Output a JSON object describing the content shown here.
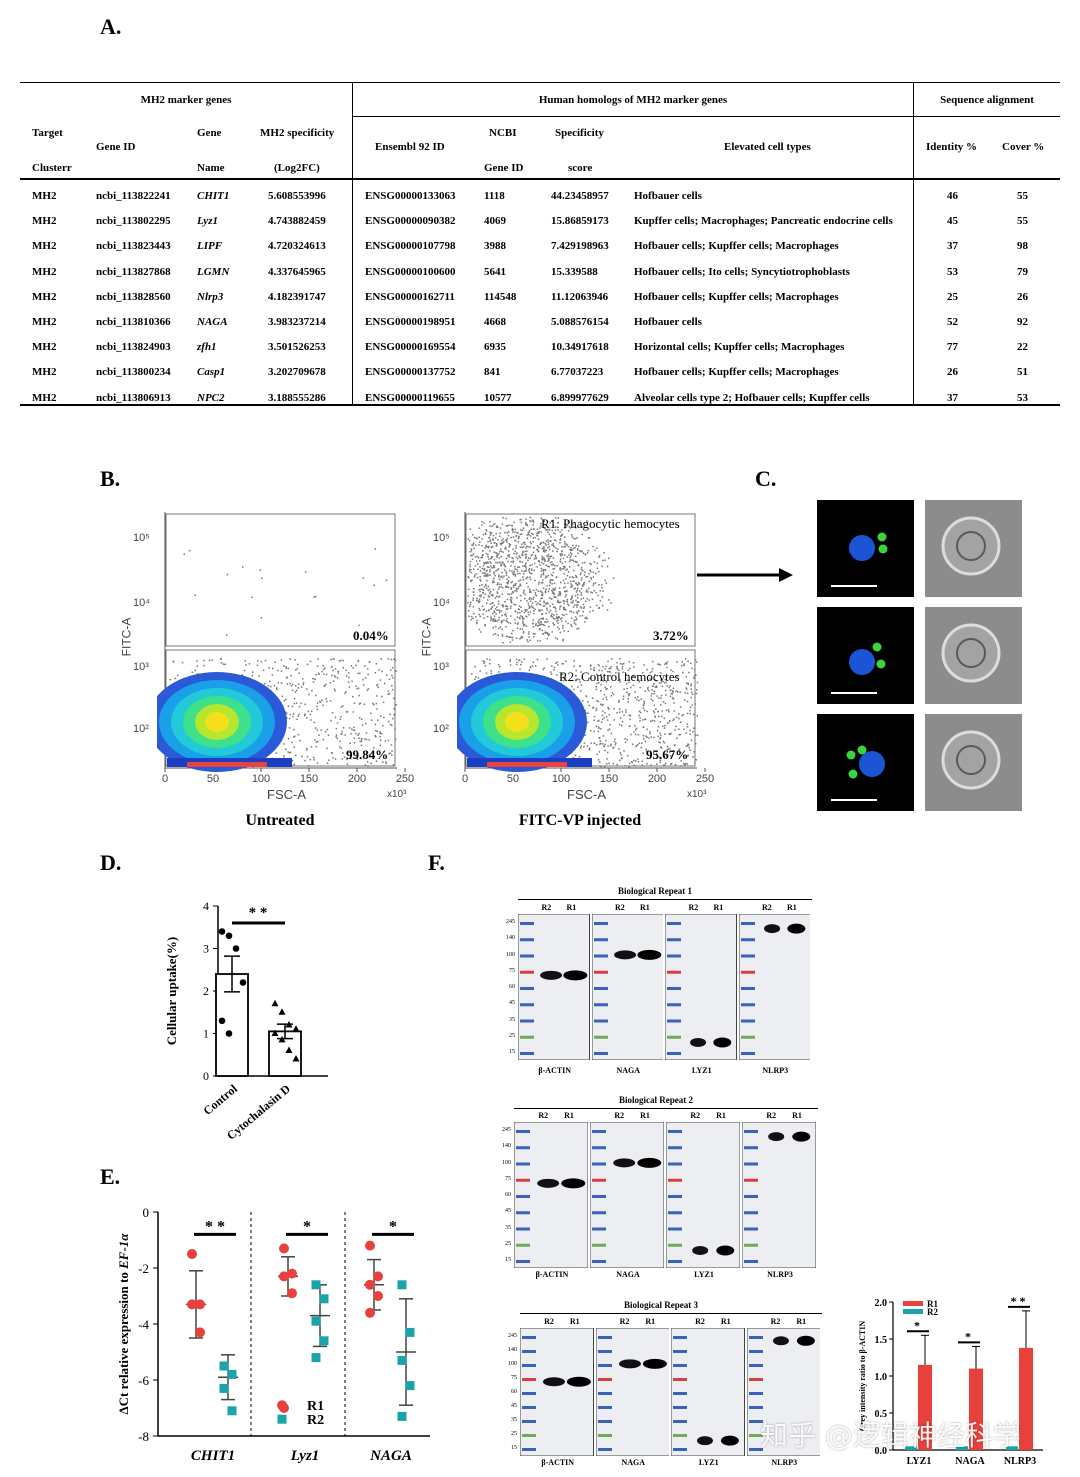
{
  "panel_labels": {
    "a": "A.",
    "b": "B.",
    "c": "C.",
    "d": "D.",
    "e": "E.",
    "f": "F."
  },
  "table_a": {
    "group_headers": [
      "MH2 marker genes",
      "Human homologs of MH2 marker genes",
      "Sequence alignment"
    ],
    "col_headers": {
      "target_top": "Target",
      "target_bottom": "Clusterr",
      "gene_id": "Gene ID",
      "gene_top": "Gene",
      "gene_bottom": "Name",
      "spec_top": "MH2 specificity",
      "spec_bottom": "(Log2FC)",
      "ensembl": "Ensembl 92 ID",
      "ncbi_top": "NCBI",
      "ncbi_bottom": "Gene ID",
      "score_top": "Specificity",
      "score_bottom": "score",
      "elevated": "Elevated cell types",
      "identity": "Identity %",
      "cover": "Cover %"
    },
    "rows": [
      [
        "MH2",
        "ncbi_113822241",
        "CHIT1",
        "5.608553996",
        "ENSG00000133063",
        "1118",
        "44.23458957",
        "Hofbauer cells",
        "46",
        "55"
      ],
      [
        "MH2",
        "ncbi_113802295",
        "Lyz1",
        "4.743882459",
        "ENSG00000090382",
        "4069",
        "15.86859173",
        "Kupffer cells; Macrophages; Pancreatic endocrine cells",
        "45",
        "55"
      ],
      [
        "MH2",
        "ncbi_113823443",
        "LIPF",
        "4.720324613",
        "ENSG00000107798",
        "3988",
        "7.429198963",
        "Hofbauer cells; Kupffer cells; Macrophages",
        "37",
        "98"
      ],
      [
        "MH2",
        "ncbi_113827868",
        "LGMN",
        "4.337645965",
        "ENSG00000100600",
        "5641",
        "15.339588",
        "Hofbauer cells; Ito cells; Syncytiotrophoblasts",
        "53",
        "79"
      ],
      [
        "MH2",
        "ncbi_113828560",
        "Nlrp3",
        "4.182391747",
        "ENSG00000162711",
        "114548",
        "11.12063946",
        "Hofbauer cells; Kupffer cells; Macrophages",
        "25",
        "26"
      ],
      [
        "MH2",
        "ncbi_113810366",
        "NAGA",
        "3.983237214",
        "ENSG00000198951",
        "4668",
        "5.088576154",
        "Hofbauer cells",
        "52",
        "92"
      ],
      [
        "MH2",
        "ncbi_113824903",
        "zfh1",
        "3.501526253",
        "ENSG00000169554",
        "6935",
        "10.34917618",
        "Horizontal cells; Kupffer cells; Macrophages",
        "77",
        "22"
      ],
      [
        "MH2",
        "ncbi_113800234",
        "Casp1",
        "3.202709678",
        "ENSG00000137752",
        "841",
        "6.77037223",
        "Hofbauer cells; Kupffer cells; Macrophages",
        "26",
        "51"
      ],
      [
        "MH2",
        "ncbi_113806913",
        "NPC2",
        "3.188555286",
        "ENSG00000119655",
        "10577",
        "6.899977629",
        "Alveolar cells type 2; Hofbauer cells; Kupffer cells",
        "37",
        "53"
      ]
    ]
  },
  "panel_b": {
    "y_axis_label": "FITC-A",
    "x_axis_label": "FSC-A",
    "x_scale_note": "x10³",
    "y_ticks": [
      "10⁵",
      "10⁴",
      "10³",
      "10²"
    ],
    "x_ticks": [
      "0",
      "50",
      "100",
      "150",
      "200",
      "250"
    ],
    "plots": [
      {
        "caption": "Untreated",
        "upper_pct": "0.04%",
        "lower_pct": "99.84%",
        "upper_gate": "",
        "lower_gate": ""
      },
      {
        "caption": "FITC-VP injected",
        "upper_pct": "3.72%",
        "lower_pct": "95.67%",
        "upper_gate": "R1: Phagocytic hemocytes",
        "lower_gate": "R2: Control hemocytes"
      }
    ]
  },
  "chart_data": [
    {
      "type": "bar",
      "panel": "D",
      "categories": [
        "Control",
        "Cytochalasin D"
      ],
      "values": [
        2.4,
        1.05
      ],
      "errors": [
        0.42,
        0.17
      ],
      "points": [
        [
          3.4,
          3.3,
          3.0,
          2.2,
          1.3,
          1.0
        ],
        [
          1.7,
          1.5,
          1.2,
          1.1,
          1.0,
          0.85,
          0.6,
          0.4
        ]
      ],
      "ylabel": "Cellular uptake(%)",
      "yticks": [
        "0",
        "1",
        "2",
        "3",
        "4"
      ],
      "ylim": [
        0,
        4
      ],
      "significance": "* *"
    },
    {
      "type": "scatter",
      "panel": "E",
      "categories": [
        "CHIT1",
        "Lyz1",
        "NAGA"
      ],
      "ylabel_prefix": "ΔCt relative expression to ",
      "ylabel_gene": "EF-1α",
      "yticks": [
        "0",
        "-2",
        "-4",
        "-6",
        "-8"
      ],
      "ylim": [
        -8,
        0
      ],
      "series": [
        {
          "name": "R1",
          "color": "#e8403b",
          "points": [
            [
              -1.5,
              -3.3,
              -3.3,
              -4.3
            ],
            [
              -1.3,
              -2.2,
              -2.3,
              -2.9,
              -7.0
            ],
            [
              -1.2,
              -2.3,
              -2.6,
              -3.0,
              -3.6
            ]
          ],
          "mean": [
            -3.3,
            -2.3,
            -2.6
          ],
          "sd": [
            1.2,
            0.7,
            0.9
          ]
        },
        {
          "name": "R2",
          "color": "#1aa3a8",
          "points": [
            [
              -5.5,
              -5.8,
              -6.3,
              -7.1
            ],
            [
              -2.6,
              -3.1,
              -3.9,
              -4.6,
              -5.2
            ],
            [
              -2.6,
              -4.3,
              -5.3,
              -6.2,
              -7.3
            ]
          ],
          "mean": [
            -5.9,
            -3.7,
            -5.0
          ],
          "sd": [
            0.8,
            1.1,
            1.9
          ]
        }
      ],
      "significance": [
        "* *",
        "*",
        "*"
      ]
    },
    {
      "type": "bar",
      "panel": "F-quant",
      "categories": [
        "LYZ1",
        "NAGA",
        "NLRP3"
      ],
      "ylabel": "Grey intensity ratio to β-ACTIN",
      "yticks": [
        "0.0",
        "0.5",
        "1.0",
        "1.5",
        "2.0"
      ],
      "ylim": [
        0,
        2.0
      ],
      "series": [
        {
          "name": "R1",
          "color": "#e8403b",
          "values": [
            1.15,
            1.1,
            1.38
          ],
          "errors": [
            0.4,
            0.3,
            0.5
          ]
        },
        {
          "name": "R2",
          "color": "#1aa3a8",
          "values": [
            0.05,
            0.05,
            0.05
          ],
          "errors": [
            0,
            0,
            0
          ]
        }
      ],
      "significance": [
        "*",
        "*",
        "* *"
      ]
    }
  ],
  "panel_f": {
    "repeats": [
      "Biological Repeat 1",
      "Biological Repeat 2",
      "Biological Repeat 3"
    ],
    "lanes": [
      "R2",
      "R1"
    ],
    "blots": [
      "β-ACTIN",
      "NAGA",
      "LYZ1",
      "NLRP3"
    ],
    "mw_markers": [
      "245",
      "140",
      "100",
      "75",
      "60",
      "45",
      "35",
      "25",
      "15"
    ]
  },
  "watermark": "知乎 @逻辑神经科学"
}
